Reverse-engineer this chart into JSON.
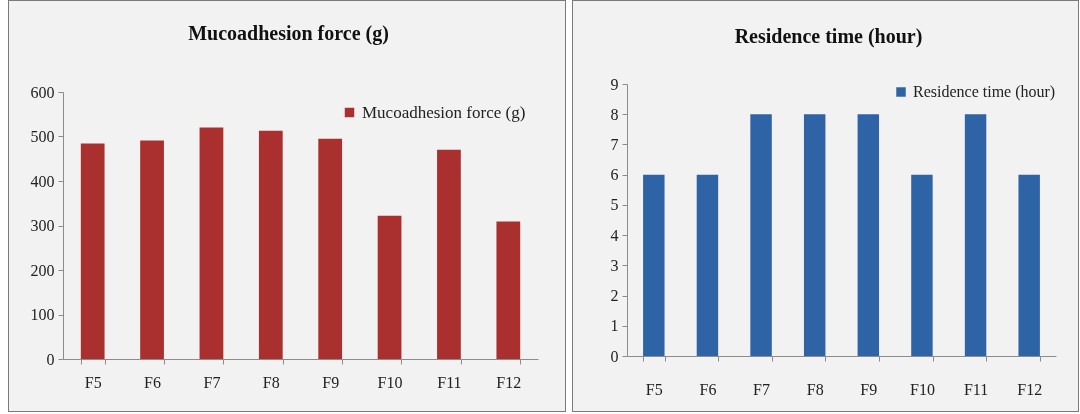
{
  "chart_data": [
    {
      "type": "bar",
      "title": "Mucoadhesion force (g)",
      "categories": [
        "F5",
        "F6",
        "F7",
        "F8",
        "F9",
        "F10",
        "F11",
        "F12"
      ],
      "series": [
        {
          "name": "Mucoadhesion force (g)",
          "color": "#a9302f",
          "values": [
            484,
            491,
            520,
            513,
            495,
            322,
            470,
            309
          ]
        }
      ],
      "ylim": [
        0,
        600
      ],
      "yticks": [
        0,
        100,
        200,
        300,
        400,
        500,
        600
      ],
      "legend": "top right",
      "grid": false
    },
    {
      "type": "bar",
      "title": "Residence time (hour)",
      "categories": [
        "F5",
        "F6",
        "F7",
        "F8",
        "F9",
        "F10",
        "F11",
        "F12"
      ],
      "series": [
        {
          "name": "Residence time (hour)",
          "color": "#2e63a6",
          "values": [
            6,
            6,
            8,
            8,
            8,
            6,
            8,
            6
          ]
        }
      ],
      "ylim": [
        0,
        9
      ],
      "yticks": [
        0,
        1,
        2,
        3,
        4,
        5,
        6,
        7,
        8,
        9
      ],
      "legend": "top right",
      "grid": false
    }
  ]
}
